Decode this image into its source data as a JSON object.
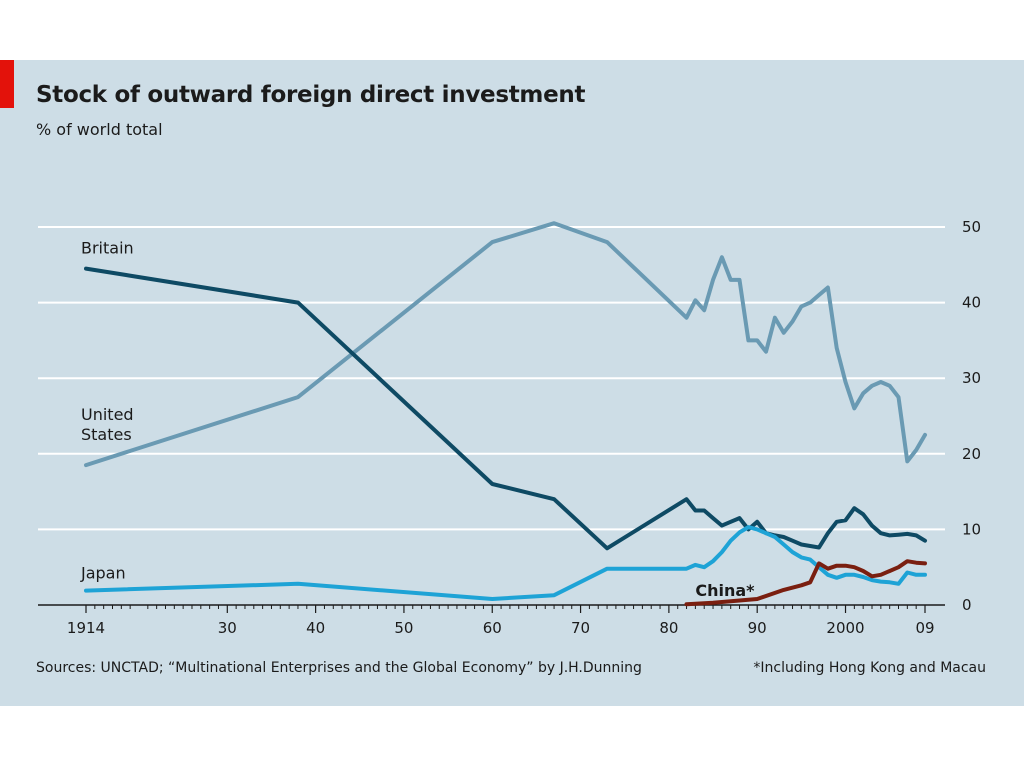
{
  "chart_data": {
    "type": "line",
    "title": "Stock of outward foreign direct investment",
    "subtitle": "% of world total",
    "source": "Sources: UNCTAD; “Multinational Enterprises and the Global Economy” by J.H.Dunning",
    "footnote": "*Including Hong Kong and Macau",
    "xlim": [
      1910,
      2012
    ],
    "ylim": [
      0,
      50
    ],
    "y_ticks": [
      0,
      10,
      20,
      30,
      40,
      50
    ],
    "y_axis_side": "right",
    "x_ticks": [
      {
        "value": 1914,
        "label": "1914"
      },
      {
        "value": 1930,
        "label": "30"
      },
      {
        "value": 1940,
        "label": "40"
      },
      {
        "value": 1950,
        "label": "50"
      },
      {
        "value": 1960,
        "label": "60"
      },
      {
        "value": 1970,
        "label": "70"
      },
      {
        "value": 1980,
        "label": "80"
      },
      {
        "value": 1990,
        "label": "90"
      },
      {
        "value": 2000,
        "label": "2000"
      },
      {
        "value": 2009,
        "label": "09"
      }
    ],
    "x_minor_tick_start": 1914,
    "x_minor_tick_end": 2009,
    "grid": true,
    "series": [
      {
        "name": "United States",
        "label_lines": [
          "United",
          "States"
        ],
        "label_at": {
          "x": 1914,
          "y": 24.5
        },
        "color": "#6a9ab3",
        "x": [
          1914,
          1938,
          1960,
          1967,
          1973,
          1982,
          1983,
          1984,
          1985,
          1986,
          1987,
          1988,
          1989,
          1990,
          1991,
          1992,
          1993,
          1994,
          1995,
          1996,
          1997,
          1998,
          1999,
          2000,
          2001,
          2002,
          2003,
          2004,
          2005,
          2006,
          2007,
          2008,
          2009
        ],
        "values": [
          18.5,
          27.5,
          48,
          50.5,
          48,
          38,
          40.3,
          39,
          43,
          46,
          43,
          43,
          35,
          35,
          33.5,
          38,
          36,
          37.5,
          39.5,
          40,
          41,
          42,
          34,
          29.5,
          26,
          28,
          29,
          29.5,
          29,
          27.5,
          19,
          20.5,
          22.5
        ]
      },
      {
        "name": "Britain",
        "label_lines": [
          "Britain"
        ],
        "label_at": {
          "x": 1914,
          "y": 46.5
        },
        "color": "#0e4a64",
        "x": [
          1914,
          1938,
          1960,
          1967,
          1973,
          1982,
          1983,
          1984,
          1985,
          1986,
          1987,
          1988,
          1989,
          1990,
          1991,
          1992,
          1993,
          1994,
          1995,
          1996,
          1997,
          1998,
          1999,
          2000,
          2001,
          2002,
          2003,
          2004,
          2005,
          2006,
          2007,
          2008,
          2009
        ],
        "values": [
          44.5,
          40,
          16,
          14,
          7.5,
          14,
          12.5,
          12.5,
          11.5,
          10.5,
          11,
          11.5,
          10,
          11,
          9.5,
          9.2,
          9,
          8.5,
          8,
          7.8,
          7.6,
          9.5,
          11,
          11.2,
          12.8,
          12,
          10.5,
          9.5,
          9.2,
          9.3,
          9.4,
          9.2,
          8.5
        ]
      },
      {
        "name": "Japan",
        "label_lines": [
          "Japan"
        ],
        "label_at": {
          "x": 1914,
          "y": 3.5
        },
        "color": "#1ea3d6",
        "x": [
          1914,
          1938,
          1960,
          1967,
          1973,
          1982,
          1983,
          1984,
          1985,
          1986,
          1987,
          1988,
          1989,
          1990,
          1991,
          1992,
          1993,
          1994,
          1995,
          1996,
          1997,
          1998,
          1999,
          2000,
          2001,
          2002,
          2003,
          2004,
          2005,
          2006,
          2007,
          2008,
          2009
        ],
        "values": [
          1.9,
          2.8,
          0.8,
          1.3,
          4.8,
          4.8,
          5.3,
          5,
          5.8,
          7,
          8.5,
          9.6,
          10.3,
          10,
          9.5,
          9,
          8,
          7,
          6.3,
          6,
          5,
          4,
          3.6,
          4,
          4,
          3.7,
          3.3,
          3.1,
          3,
          2.8,
          4.3,
          4,
          4
        ]
      },
      {
        "name": "China*",
        "label_lines": [
          "China*"
        ],
        "label_at": {
          "x": 1983,
          "y": 1.2
        },
        "color": "#7a1f10",
        "x": [
          1982,
          1985,
          1990,
          1993,
          1995,
          1996,
          1997,
          1998,
          1999,
          2000,
          2001,
          2002,
          2003,
          2004,
          2005,
          2006,
          2007,
          2008,
          2009
        ],
        "values": [
          0.1,
          0.3,
          0.8,
          2,
          2.6,
          3,
          5.5,
          4.8,
          5.2,
          5.2,
          5,
          4.5,
          3.8,
          4,
          4.5,
          5,
          5.8,
          5.6,
          5.5
        ]
      }
    ]
  }
}
